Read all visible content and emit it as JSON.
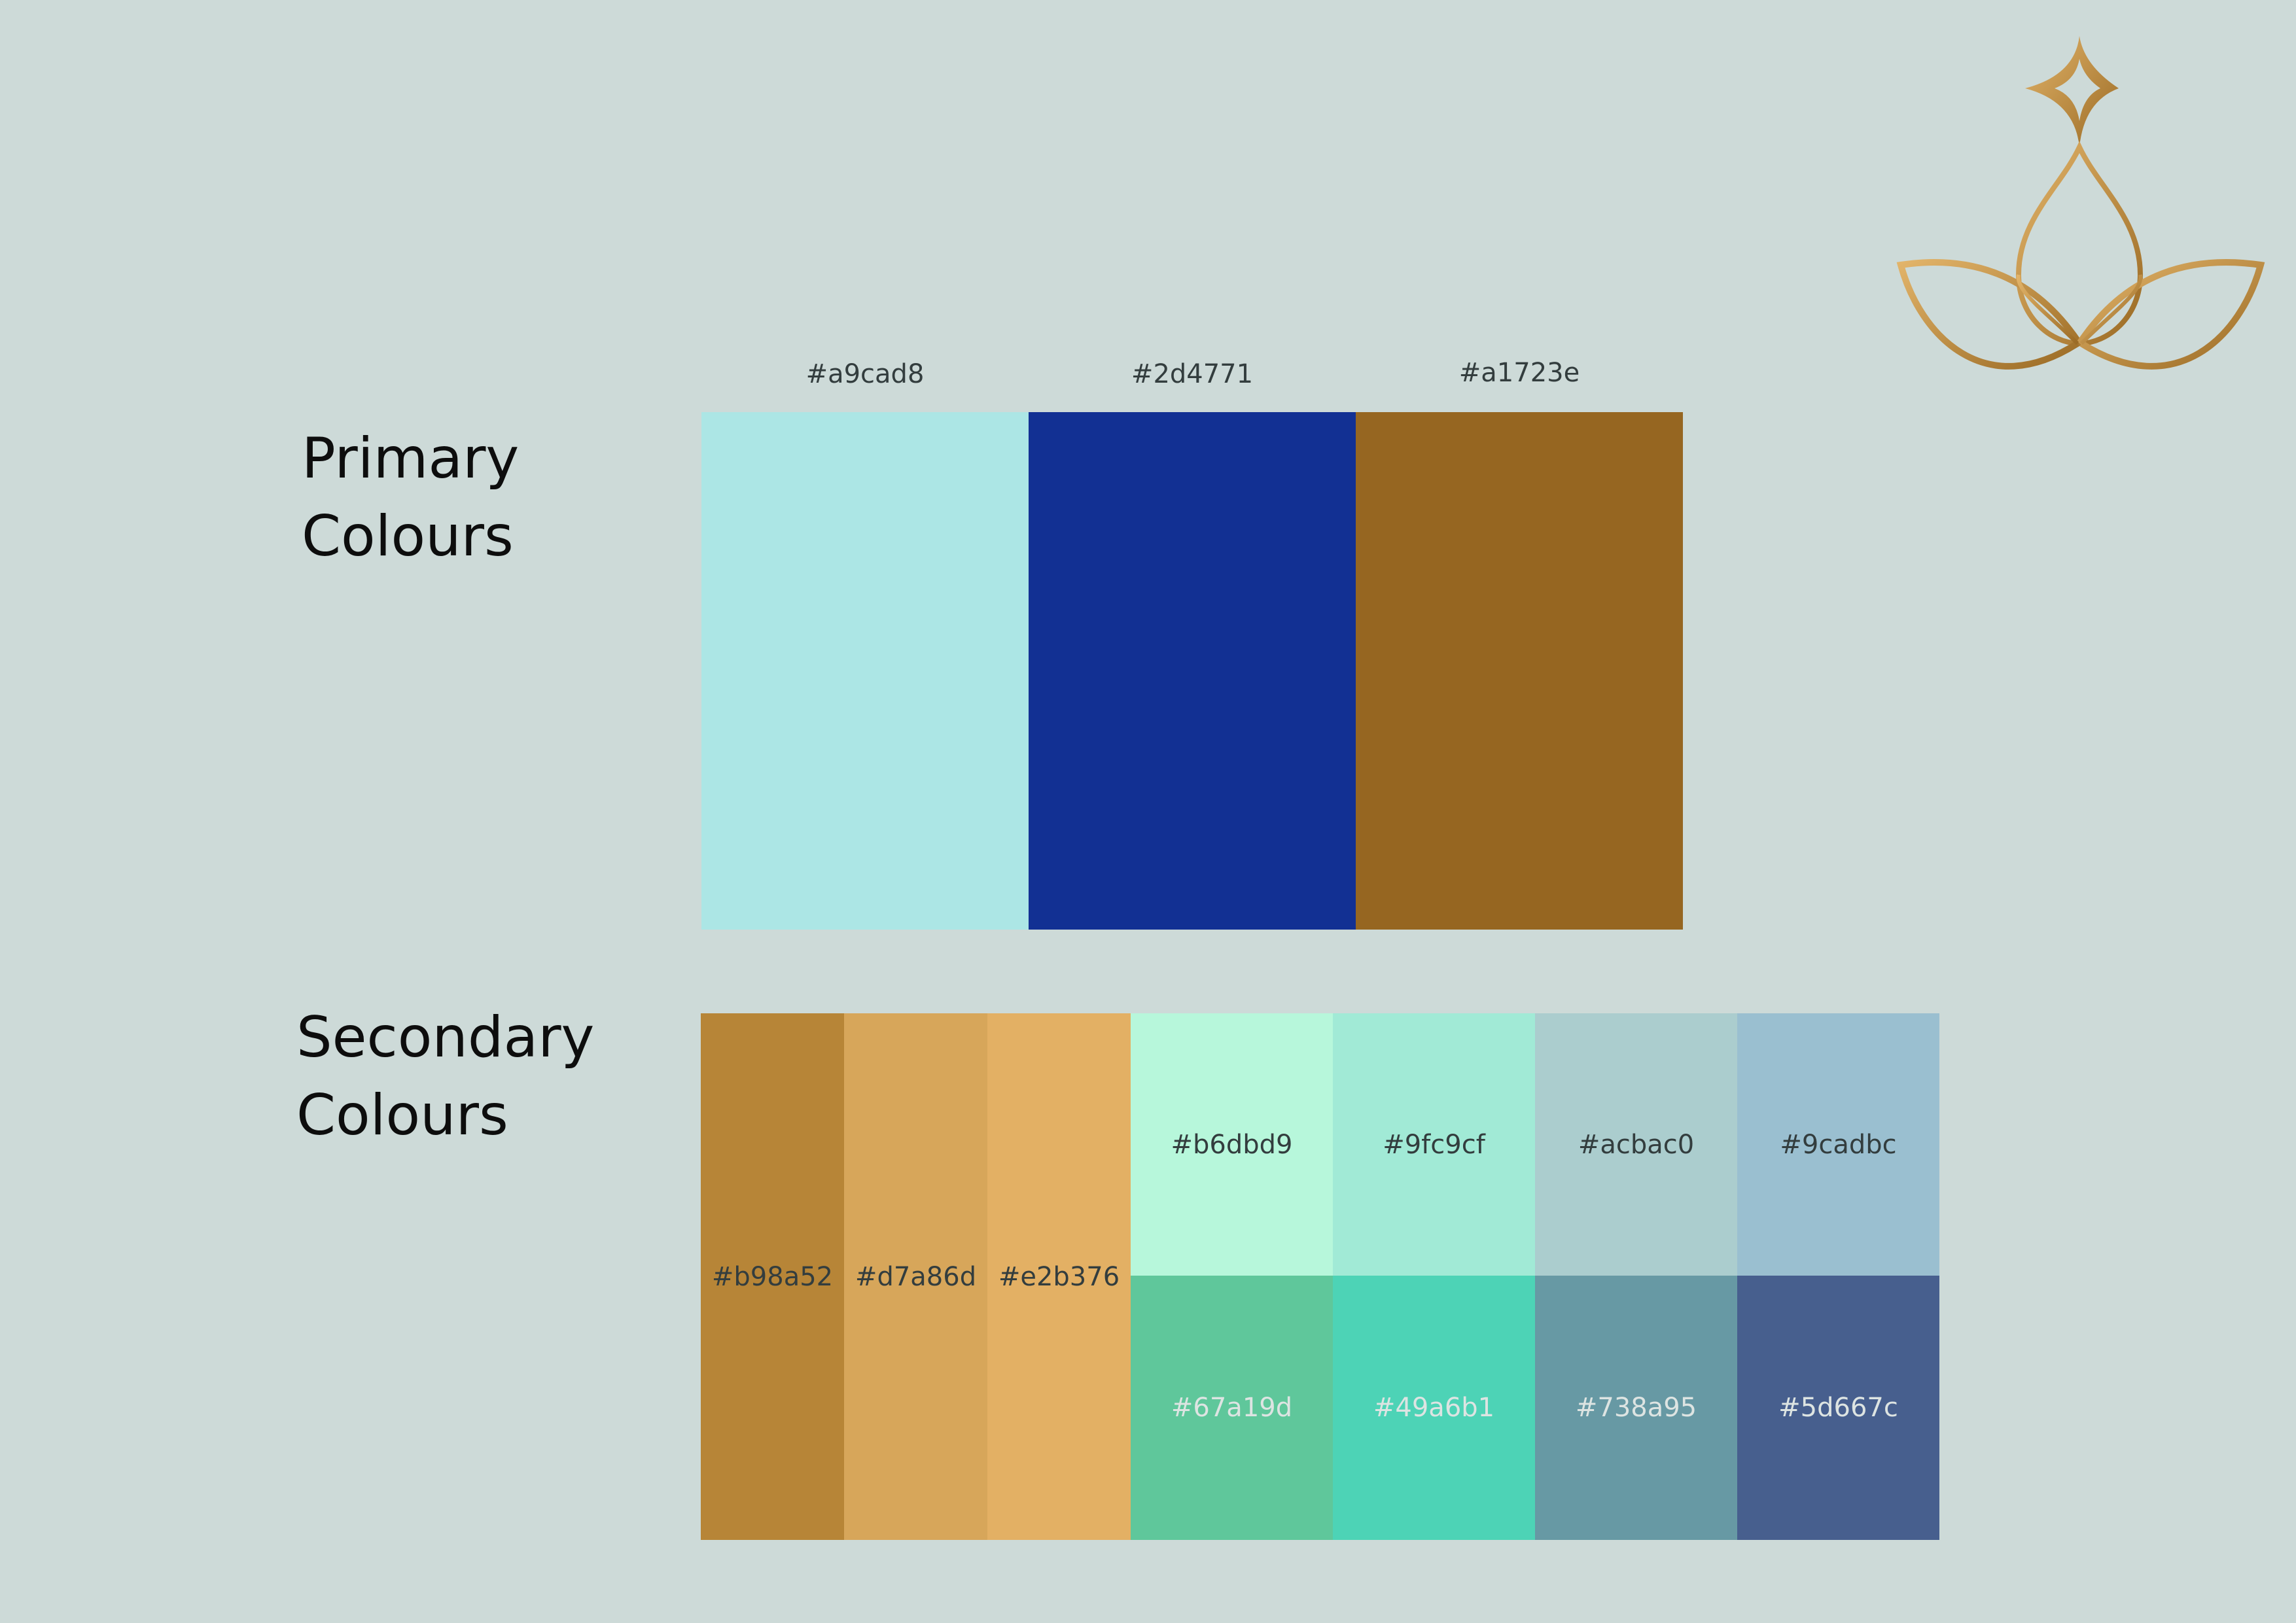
{
  "primary": {
    "title_line1": "Primary",
    "title_line2": "Colours",
    "swatches": [
      {
        "label": "#a9cad8",
        "color": "#ace6e5"
      },
      {
        "label": "#2d4771",
        "color": "#123093"
      },
      {
        "label": "#a1723e",
        "color": "#966621"
      }
    ]
  },
  "secondary": {
    "title_line1": "Secondary",
    "title_line2": "Colours",
    "tall_swatches": [
      {
        "label": "#b98a52",
        "color": "#b78537"
      },
      {
        "label": "#d7a86d",
        "color": "#d7a65a"
      },
      {
        "label": "#e2b376",
        "color": "#e3b064"
      }
    ],
    "top_row": [
      {
        "label": "#b6dbd9",
        "color": "#b7f7db"
      },
      {
        "label": "#9fc9cf",
        "color": "#a1ead6"
      },
      {
        "label": "#acbac0",
        "color": "#abcdce"
      },
      {
        "label": "#9cadbc",
        "color": "#9abfd0"
      }
    ],
    "bottom_row": [
      {
        "label": "#67a19d",
        "color": "#5fc79b"
      },
      {
        "label": "#49a6b1",
        "color": "#4dd3b6"
      },
      {
        "label": "#738a95",
        "color": "#6799a4"
      },
      {
        "label": "#5d667c",
        "color": "#475f8e"
      }
    ]
  },
  "logo": {
    "icon": "lotus-drop-star-icon",
    "gold_light": "#e2b46a",
    "gold_dark": "#9a6a24"
  }
}
